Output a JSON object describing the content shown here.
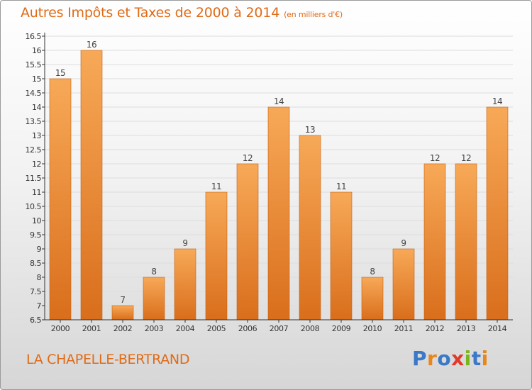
{
  "title": "Autres Impôts et Taxes de 2000 à 2014",
  "unit": "(en milliers d'€)",
  "location": "LA CHAPELLE-BERTRAND",
  "logo": {
    "text": "Proxiti",
    "letter_colors": [
      "#3a78c8",
      "#e8851b",
      "#3a78c8",
      "#e03a2a",
      "#7ab51d",
      "#3a78c8",
      "#e8851b"
    ]
  },
  "colors": {
    "text_accent": "#e06b16",
    "bar_light": "#f7a957",
    "bar_dark": "#d96e1c",
    "axis": "#333333",
    "grid": "#dddddd"
  },
  "chart_data": {
    "type": "bar",
    "categories": [
      "2000",
      "2001",
      "2002",
      "2003",
      "2004",
      "2005",
      "2006",
      "2007",
      "2008",
      "2009",
      "2010",
      "2011",
      "2012",
      "2013",
      "2014"
    ],
    "values": [
      15,
      16,
      7,
      8,
      9,
      11,
      12,
      14,
      13,
      11,
      8,
      9,
      12,
      12,
      14
    ],
    "data_labels": [
      "15",
      "16",
      "7",
      "8",
      "9",
      "11",
      "12",
      "14",
      "13",
      "11",
      "8",
      "9",
      "12",
      "12",
      "14"
    ],
    "yticks": [
      "6.5",
      "7",
      "7.5",
      "8",
      "8.5",
      "9",
      "9.5",
      "10",
      "10.5",
      "11",
      "11.5",
      "12",
      "12.5",
      "13",
      "13.5",
      "14",
      "14.5",
      "15",
      "15.5",
      "16",
      "16.5"
    ],
    "ylim": [
      6.5,
      16.5
    ],
    "grid": true,
    "legend": "none"
  }
}
